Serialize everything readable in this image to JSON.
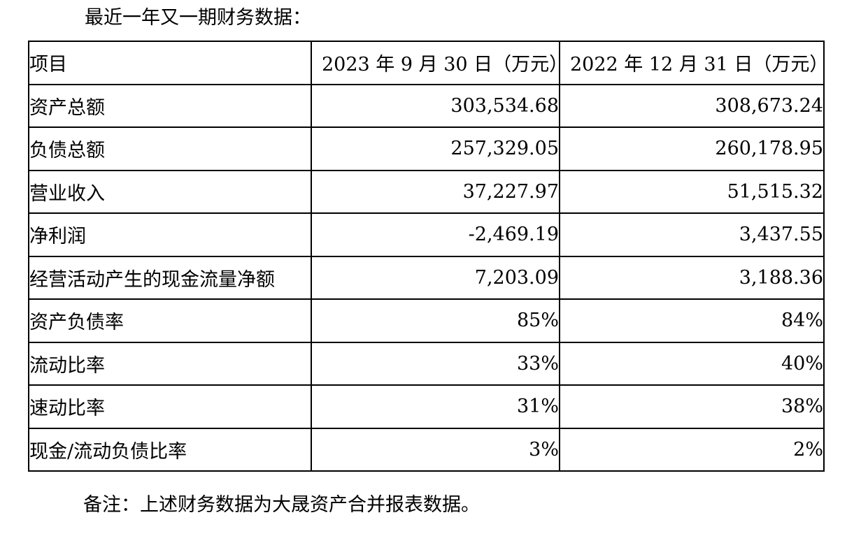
{
  "heading": "最近一年又一期财务数据：",
  "table": {
    "headers": [
      "项目",
      "2023 年 9 月 30 日（万元）",
      "2022 年 12 月 31 日（万元）"
    ],
    "rows": [
      {
        "item": "资产总额",
        "v2023": "303,534.68",
        "v2022": "308,673.24"
      },
      {
        "item": "负债总额",
        "v2023": "257,329.05",
        "v2022": "260,178.95"
      },
      {
        "item": "营业收入",
        "v2023": "37,227.97",
        "v2022": "51,515.32"
      },
      {
        "item": "净利润",
        "v2023": "-2,469.19",
        "v2022": "3,437.55"
      },
      {
        "item": "经营活动产生的现金流量净额",
        "v2023": "7,203.09",
        "v2022": "3,188.36"
      },
      {
        "item": "资产负债率",
        "v2023": "85%",
        "v2022": "84%"
      },
      {
        "item": "流动比率",
        "v2023": "33%",
        "v2022": "40%"
      },
      {
        "item": "速动比率",
        "v2023": "31%",
        "v2022": "38%"
      },
      {
        "item": "现金/流动负债比率",
        "v2023": "3%",
        "v2022": "2%"
      }
    ]
  },
  "note": "备注：上述财务数据为大晟资产合并报表数据。"
}
